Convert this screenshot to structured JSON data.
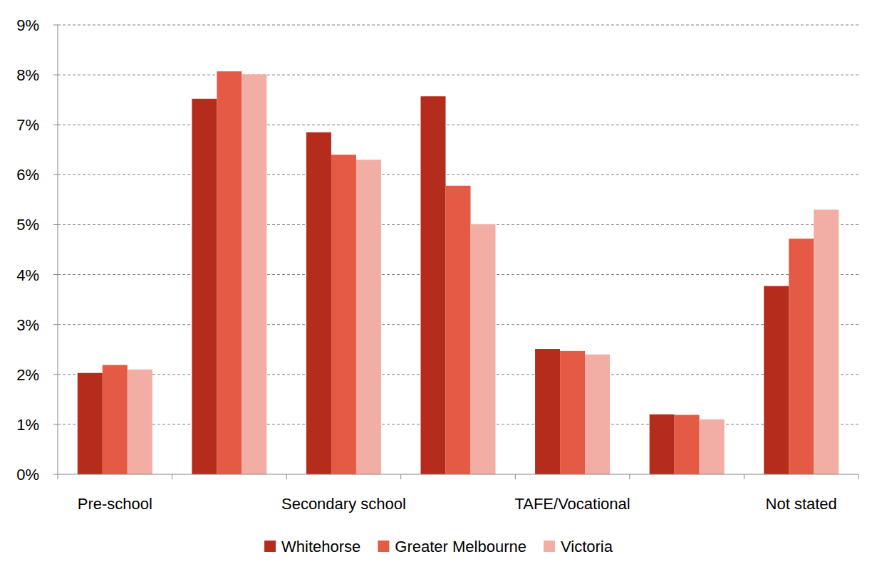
{
  "chart_data": {
    "type": "bar",
    "categories": [
      "Pre-school",
      null,
      "Secondary school",
      null,
      "TAFE/Vocational",
      null,
      "Not stated"
    ],
    "series": [
      {
        "name": "Whitehorse",
        "color": "#b52b1c",
        "values": [
          2.03,
          7.52,
          6.85,
          7.57,
          2.51,
          1.2,
          3.77
        ]
      },
      {
        "name": "Greater Melbourne",
        "color": "#e55a45",
        "values": [
          2.19,
          8.07,
          6.4,
          5.78,
          2.47,
          1.19,
          4.72
        ]
      },
      {
        "name": "Victoria",
        "color": "#f2aea5",
        "values": [
          2.1,
          8.01,
          6.3,
          5.01,
          2.4,
          1.1,
          5.3
        ]
      }
    ],
    "ylim": [
      0,
      9
    ],
    "yticks": [
      {
        "value": 0,
        "label": "0%"
      },
      {
        "value": 1,
        "label": "1%"
      },
      {
        "value": 2,
        "label": "2%"
      },
      {
        "value": 3,
        "label": "3%"
      },
      {
        "value": 4,
        "label": "4%"
      },
      {
        "value": 5,
        "label": "5%"
      },
      {
        "value": 6,
        "label": "6%"
      },
      {
        "value": 7,
        "label": "7%"
      },
      {
        "value": 8,
        "label": "8%"
      },
      {
        "value": 9,
        "label": "9%"
      }
    ],
    "grid": true,
    "legend": "bottom"
  }
}
